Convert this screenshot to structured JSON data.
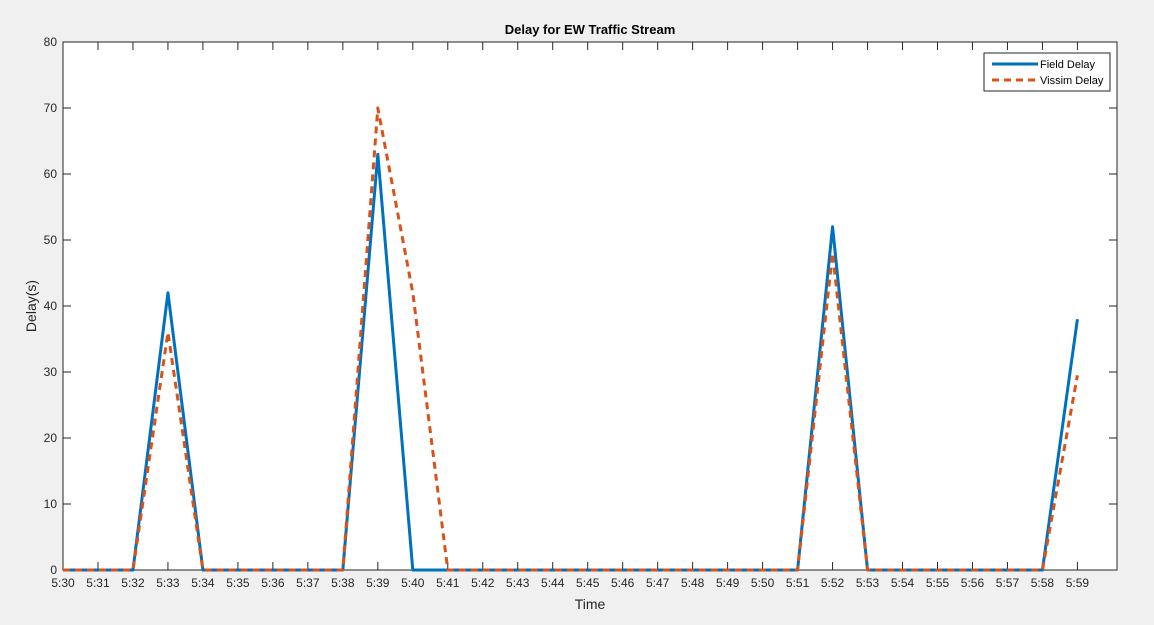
{
  "chart_data": {
    "type": "line",
    "title": "Delay for EW Traffic Stream",
    "xlabel": "Time",
    "ylabel": "Delay(s)",
    "x": [
      "5:30",
      "5:31",
      "5:32",
      "5:33",
      "5:34",
      "5:35",
      "5:36",
      "5:37",
      "5:38",
      "5:39",
      "5:40",
      "5:41",
      "5:42",
      "5:43",
      "5:44",
      "5:45",
      "5:46",
      "5:47",
      "5:48",
      "5:49",
      "5:50",
      "5:51",
      "5:52",
      "5:53",
      "5:54",
      "5:55",
      "5:56",
      "5:57",
      "5:58",
      "5:59"
    ],
    "ylim": [
      0,
      80
    ],
    "yticks": [
      0,
      10,
      20,
      30,
      40,
      50,
      60,
      70,
      80
    ],
    "grid": false,
    "legend_position": "top-right",
    "series": [
      {
        "name": "Field Delay",
        "color": "#0072bd",
        "style": "solid",
        "values": [
          0,
          0,
          0,
          42,
          0,
          0,
          0,
          0,
          0,
          63,
          0,
          0,
          0,
          0,
          0,
          0,
          0,
          0,
          0,
          0,
          0,
          0,
          52,
          0,
          0,
          0,
          0,
          0,
          0,
          38
        ]
      },
      {
        "name": "Vissim Delay",
        "color": "#d95319",
        "style": "dashed",
        "values": [
          0,
          0,
          0,
          36,
          0,
          0,
          0,
          0,
          0,
          70,
          42,
          0,
          0,
          0,
          0,
          0,
          0,
          0,
          0,
          0,
          0,
          0,
          48,
          0,
          0,
          0,
          0,
          0,
          0,
          29.5
        ]
      }
    ]
  }
}
